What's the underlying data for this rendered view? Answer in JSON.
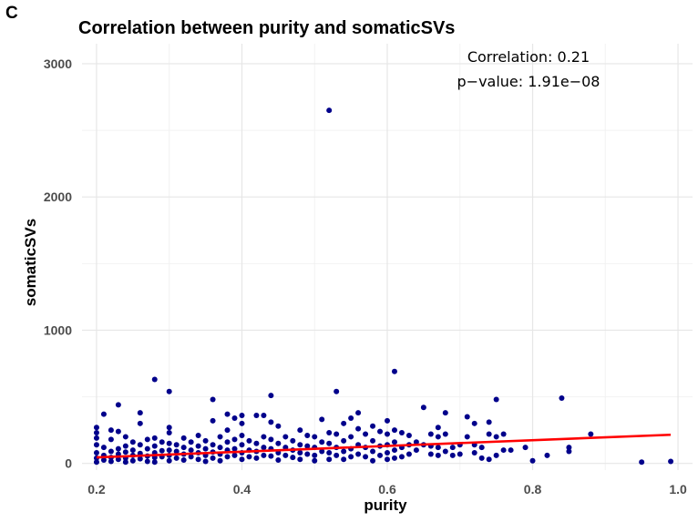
{
  "panel_label": "C",
  "chart_data": {
    "type": "scatter",
    "title": "Correlation between purity and somaticSVs",
    "xlabel": "purity",
    "ylabel": "somaticSVs",
    "xlim": [
      0.18,
      1.02
    ],
    "ylim": [
      -50,
      3150
    ],
    "x_ticks": [
      0.2,
      0.4,
      0.6,
      0.8,
      1.0
    ],
    "x_tick_labels": [
      "0.2",
      "0.4",
      "0.6",
      "0.8",
      "1.0"
    ],
    "y_ticks": [
      0,
      1000,
      2000,
      3000
    ],
    "y_tick_labels": [
      "0",
      "1000",
      "2000",
      "3000"
    ],
    "grid": true,
    "point_color": "#00008B",
    "trend_color": "#FF0000",
    "annotations": [
      "Correlation:  0.21",
      "p−value:  1.91e−08"
    ],
    "trend_line": {
      "x": [
        0.2,
        0.99
      ],
      "y": [
        45,
        215
      ]
    },
    "points": [
      [
        0.2,
        270
      ],
      [
        0.2,
        230
      ],
      [
        0.2,
        190
      ],
      [
        0.2,
        140
      ],
      [
        0.2,
        80
      ],
      [
        0.2,
        40
      ],
      [
        0.2,
        10
      ],
      [
        0.21,
        370
      ],
      [
        0.21,
        120
      ],
      [
        0.21,
        60
      ],
      [
        0.21,
        25
      ],
      [
        0.22,
        250
      ],
      [
        0.22,
        180
      ],
      [
        0.22,
        90
      ],
      [
        0.22,
        45
      ],
      [
        0.22,
        15
      ],
      [
        0.23,
        440
      ],
      [
        0.23,
        240
      ],
      [
        0.23,
        110
      ],
      [
        0.23,
        70
      ],
      [
        0.23,
        30
      ],
      [
        0.24,
        200
      ],
      [
        0.24,
        130
      ],
      [
        0.24,
        85
      ],
      [
        0.24,
        40
      ],
      [
        0.24,
        10
      ],
      [
        0.25,
        160
      ],
      [
        0.25,
        100
      ],
      [
        0.25,
        60
      ],
      [
        0.25,
        20
      ],
      [
        0.26,
        380
      ],
      [
        0.26,
        300
      ],
      [
        0.26,
        140
      ],
      [
        0.26,
        75
      ],
      [
        0.26,
        35
      ],
      [
        0.27,
        180
      ],
      [
        0.27,
        110
      ],
      [
        0.27,
        55
      ],
      [
        0.27,
        15
      ],
      [
        0.28,
        630
      ],
      [
        0.28,
        190
      ],
      [
        0.28,
        130
      ],
      [
        0.28,
        80
      ],
      [
        0.28,
        45
      ],
      [
        0.28,
        10
      ],
      [
        0.29,
        160
      ],
      [
        0.29,
        95
      ],
      [
        0.29,
        50
      ],
      [
        0.3,
        540
      ],
      [
        0.3,
        270
      ],
      [
        0.3,
        230
      ],
      [
        0.3,
        150
      ],
      [
        0.3,
        100
      ],
      [
        0.3,
        60
      ],
      [
        0.3,
        20
      ],
      [
        0.31,
        140
      ],
      [
        0.31,
        90
      ],
      [
        0.31,
        40
      ],
      [
        0.32,
        190
      ],
      [
        0.32,
        120
      ],
      [
        0.32,
        70
      ],
      [
        0.32,
        25
      ],
      [
        0.33,
        160
      ],
      [
        0.33,
        100
      ],
      [
        0.33,
        50
      ],
      [
        0.34,
        210
      ],
      [
        0.34,
        130
      ],
      [
        0.34,
        80
      ],
      [
        0.34,
        30
      ],
      [
        0.35,
        170
      ],
      [
        0.35,
        110
      ],
      [
        0.35,
        60
      ],
      [
        0.35,
        15
      ],
      [
        0.36,
        480
      ],
      [
        0.36,
        320
      ],
      [
        0.36,
        140
      ],
      [
        0.36,
        85
      ],
      [
        0.36,
        40
      ],
      [
        0.37,
        200
      ],
      [
        0.37,
        120
      ],
      [
        0.37,
        70
      ],
      [
        0.37,
        20
      ],
      [
        0.38,
        370
      ],
      [
        0.38,
        250
      ],
      [
        0.38,
        160
      ],
      [
        0.38,
        100
      ],
      [
        0.38,
        50
      ],
      [
        0.39,
        340
      ],
      [
        0.39,
        180
      ],
      [
        0.39,
        110
      ],
      [
        0.39,
        60
      ],
      [
        0.4,
        360
      ],
      [
        0.4,
        300
      ],
      [
        0.4,
        210
      ],
      [
        0.4,
        140
      ],
      [
        0.4,
        80
      ],
      [
        0.4,
        30
      ],
      [
        0.41,
        170
      ],
      [
        0.41,
        100
      ],
      [
        0.41,
        50
      ],
      [
        0.42,
        360
      ],
      [
        0.42,
        150
      ],
      [
        0.42,
        90
      ],
      [
        0.42,
        40
      ],
      [
        0.43,
        360
      ],
      [
        0.43,
        200
      ],
      [
        0.43,
        120
      ],
      [
        0.43,
        60
      ],
      [
        0.44,
        510
      ],
      [
        0.44,
        310
      ],
      [
        0.44,
        180
      ],
      [
        0.44,
        110
      ],
      [
        0.44,
        55
      ],
      [
        0.45,
        280
      ],
      [
        0.45,
        150
      ],
      [
        0.45,
        80
      ],
      [
        0.45,
        25
      ],
      [
        0.46,
        200
      ],
      [
        0.46,
        120
      ],
      [
        0.46,
        60
      ],
      [
        0.47,
        170
      ],
      [
        0.47,
        100
      ],
      [
        0.47,
        45
      ],
      [
        0.48,
        250
      ],
      [
        0.48,
        140
      ],
      [
        0.48,
        80
      ],
      [
        0.48,
        30
      ],
      [
        0.49,
        210
      ],
      [
        0.49,
        130
      ],
      [
        0.49,
        70
      ],
      [
        0.5,
        200
      ],
      [
        0.5,
        120
      ],
      [
        0.5,
        60
      ],
      [
        0.5,
        20
      ],
      [
        0.51,
        330
      ],
      [
        0.51,
        160
      ],
      [
        0.51,
        90
      ],
      [
        0.52,
        2650
      ],
      [
        0.52,
        230
      ],
      [
        0.52,
        150
      ],
      [
        0.52,
        80
      ],
      [
        0.52,
        30
      ],
      [
        0.53,
        540
      ],
      [
        0.53,
        220
      ],
      [
        0.53,
        120
      ],
      [
        0.53,
        60
      ],
      [
        0.54,
        300
      ],
      [
        0.54,
        170
      ],
      [
        0.54,
        90
      ],
      [
        0.54,
        30
      ],
      [
        0.55,
        340
      ],
      [
        0.55,
        200
      ],
      [
        0.55,
        110
      ],
      [
        0.55,
        50
      ],
      [
        0.56,
        380
      ],
      [
        0.56,
        260
      ],
      [
        0.56,
        140
      ],
      [
        0.56,
        70
      ],
      [
        0.57,
        220
      ],
      [
        0.57,
        120
      ],
      [
        0.57,
        50
      ],
      [
        0.58,
        280
      ],
      [
        0.58,
        170
      ],
      [
        0.58,
        90
      ],
      [
        0.58,
        20
      ],
      [
        0.59,
        240
      ],
      [
        0.59,
        130
      ],
      [
        0.59,
        60
      ],
      [
        0.6,
        320
      ],
      [
        0.6,
        220
      ],
      [
        0.6,
        140
      ],
      [
        0.6,
        80
      ],
      [
        0.6,
        30
      ],
      [
        0.61,
        690
      ],
      [
        0.61,
        250
      ],
      [
        0.61,
        160
      ],
      [
        0.61,
        100
      ],
      [
        0.61,
        40
      ],
      [
        0.62,
        230
      ],
      [
        0.62,
        120
      ],
      [
        0.62,
        50
      ],
      [
        0.63,
        210
      ],
      [
        0.63,
        140
      ],
      [
        0.63,
        70
      ],
      [
        0.64,
        160
      ],
      [
        0.64,
        100
      ],
      [
        0.65,
        420
      ],
      [
        0.65,
        140
      ],
      [
        0.66,
        220
      ],
      [
        0.66,
        130
      ],
      [
        0.66,
        70
      ],
      [
        0.67,
        270
      ],
      [
        0.67,
        200
      ],
      [
        0.67,
        120
      ],
      [
        0.67,
        60
      ],
      [
        0.68,
        380
      ],
      [
        0.68,
        220
      ],
      [
        0.68,
        90
      ],
      [
        0.69,
        120
      ],
      [
        0.69,
        60
      ],
      [
        0.7,
        140
      ],
      [
        0.7,
        70
      ],
      [
        0.71,
        350
      ],
      [
        0.71,
        200
      ],
      [
        0.72,
        300
      ],
      [
        0.72,
        140
      ],
      [
        0.72,
        80
      ],
      [
        0.73,
        120
      ],
      [
        0.73,
        40
      ],
      [
        0.74,
        310
      ],
      [
        0.74,
        220
      ],
      [
        0.74,
        30
      ],
      [
        0.75,
        480
      ],
      [
        0.75,
        200
      ],
      [
        0.75,
        60
      ],
      [
        0.76,
        100
      ],
      [
        0.76,
        220
      ],
      [
        0.77,
        100
      ],
      [
        0.79,
        120
      ],
      [
        0.8,
        20
      ],
      [
        0.82,
        60
      ],
      [
        0.84,
        490
      ],
      [
        0.85,
        120
      ],
      [
        0.85,
        90
      ],
      [
        0.88,
        220
      ],
      [
        0.95,
        10
      ],
      [
        0.99,
        15
      ]
    ]
  }
}
